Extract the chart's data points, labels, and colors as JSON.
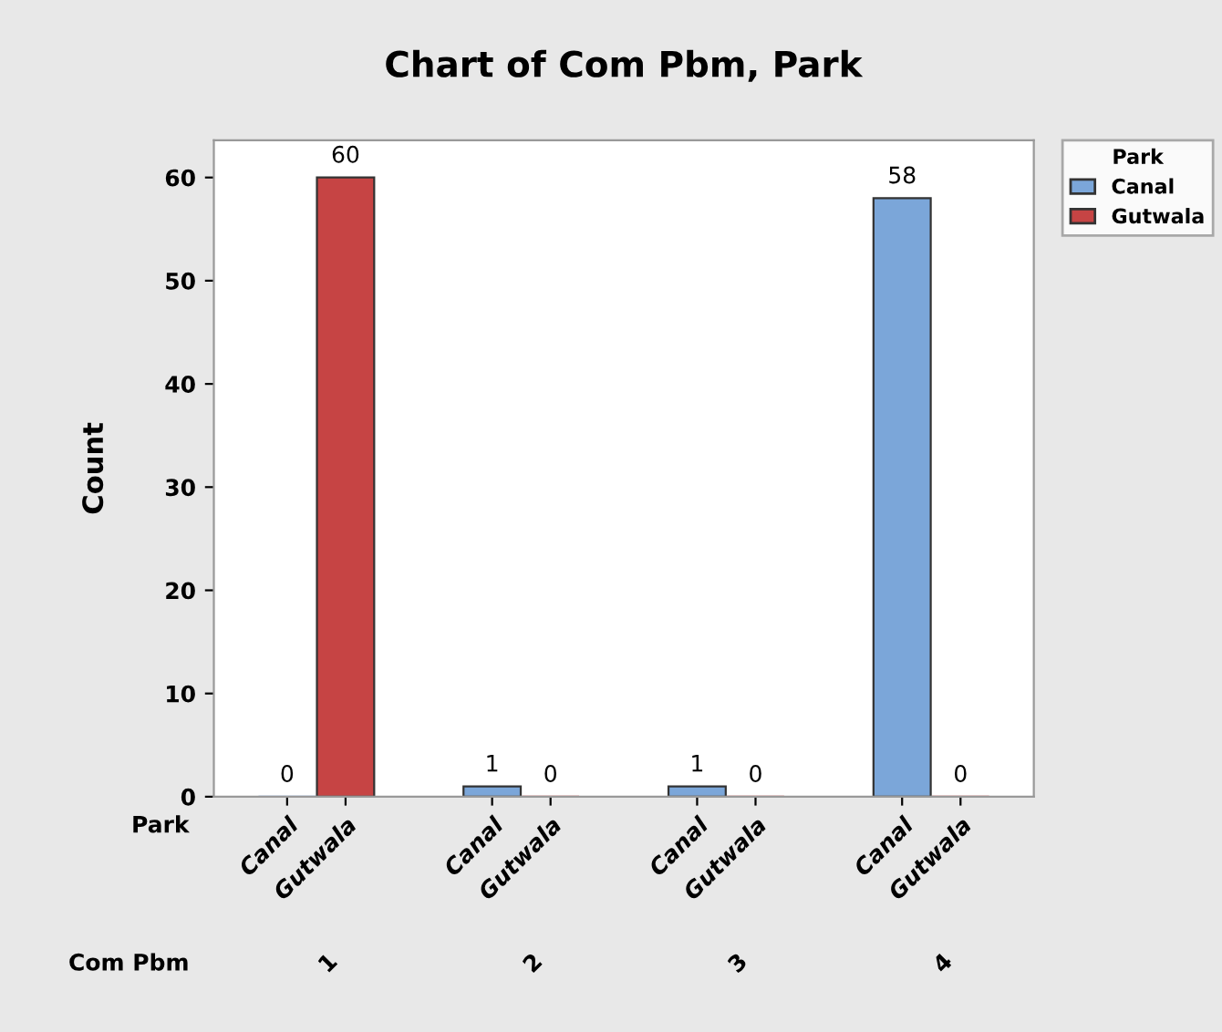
{
  "chart_data": {
    "type": "bar",
    "title": "Chart of Com Pbm, Park",
    "xlabel": "Com Pbm",
    "ylabel": "Count",
    "legend_title": "Park",
    "annotations": [
      "Park"
    ],
    "categories": [
      "1",
      "2",
      "3",
      "4"
    ],
    "series": [
      {
        "name": "Canal",
        "color": "#7ba6d9",
        "values": [
          0,
          1,
          1,
          58
        ]
      },
      {
        "name": "Gutwala",
        "color": "#c64444",
        "values": [
          60,
          0,
          0,
          0
        ]
      }
    ],
    "ylim": [
      0,
      63.6
    ],
    "yticks": [
      0,
      10,
      20,
      30,
      40,
      50,
      60
    ],
    "grid": false,
    "legend": "top right",
    "data_labels": true
  }
}
